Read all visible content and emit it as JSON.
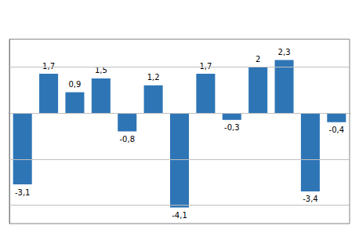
{
  "chart_data": {
    "type": "bar",
    "categories": [
      null,
      null,
      null,
      null,
      null,
      null,
      null,
      null,
      null,
      null,
      null,
      null,
      null
    ],
    "values": [
      -3.1,
      1.7,
      0.9,
      1.5,
      -0.8,
      1.2,
      -4.1,
      1.7,
      -0.3,
      2.0,
      2.3,
      -3.4,
      -0.4
    ],
    "value_labels": [
      "-3,1",
      "1,7",
      "0,9",
      "1,5",
      "-0,8",
      "1,2",
      "-4,1",
      "1,7",
      "-0,3",
      "2",
      "2,3",
      "-3,4",
      "-0,4"
    ],
    "color": "#2e75b6",
    "ylim": [
      -4.8,
      3.2
    ],
    "yticks": [
      -4,
      -2,
      0,
      2
    ],
    "grid": true,
    "data_labels": true,
    "tick_labels": false
  }
}
